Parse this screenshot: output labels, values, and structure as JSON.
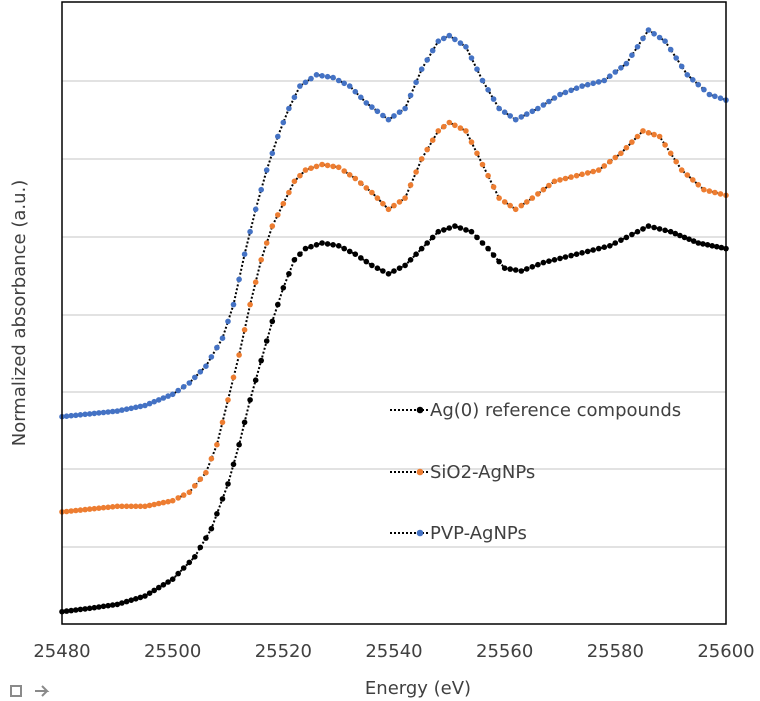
{
  "chart_data": {
    "type": "line",
    "title": "",
    "xlabel": "Energy (eV)",
    "ylabel": "Normalized absorbance (a.u.)",
    "xlim": [
      25480,
      25600
    ],
    "x_ticks": [
      25480,
      25500,
      25520,
      25540,
      25560,
      25580,
      25600
    ],
    "grid": "horizontal",
    "legend_placement": "lower-right",
    "series": [
      {
        "name": "Ag(0) reference compounds",
        "color": "#000000",
        "points": [
          [
            25480,
            0.012
          ],
          [
            25485,
            0.018
          ],
          [
            25490,
            0.025
          ],
          [
            25495,
            0.04
          ],
          [
            25500,
            0.07
          ],
          [
            25504,
            0.11
          ],
          [
            25507,
            0.16
          ],
          [
            25510,
            0.24
          ],
          [
            25512,
            0.31
          ],
          [
            25514,
            0.39
          ],
          [
            25516,
            0.46
          ],
          [
            25518,
            0.53
          ],
          [
            25520,
            0.59
          ],
          [
            25522,
            0.64
          ],
          [
            25524,
            0.66
          ],
          [
            25527,
            0.67
          ],
          [
            25530,
            0.665
          ],
          [
            25533,
            0.65
          ],
          [
            25536,
            0.63
          ],
          [
            25539,
            0.615
          ],
          [
            25542,
            0.63
          ],
          [
            25545,
            0.66
          ],
          [
            25548,
            0.69
          ],
          [
            25551,
            0.7
          ],
          [
            25554,
            0.69
          ],
          [
            25557,
            0.66
          ],
          [
            25560,
            0.625
          ],
          [
            25563,
            0.62
          ],
          [
            25567,
            0.635
          ],
          [
            25571,
            0.645
          ],
          [
            25575,
            0.655
          ],
          [
            25579,
            0.665
          ],
          [
            25582,
            0.68
          ],
          [
            25586,
            0.7
          ],
          [
            25590,
            0.69
          ],
          [
            25595,
            0.67
          ],
          [
            25600,
            0.66
          ]
        ]
      },
      {
        "name": "SiO2-AgNPs",
        "color": "#ED7D31",
        "points": [
          [
            25480,
            0.19
          ],
          [
            25485,
            0.195
          ],
          [
            25490,
            0.2
          ],
          [
            25495,
            0.2
          ],
          [
            25500,
            0.21
          ],
          [
            25503,
            0.225
          ],
          [
            25506,
            0.26
          ],
          [
            25508,
            0.31
          ],
          [
            25510,
            0.39
          ],
          [
            25512,
            0.47
          ],
          [
            25514,
            0.56
          ],
          [
            25516,
            0.64
          ],
          [
            25518,
            0.7
          ],
          [
            25520,
            0.74
          ],
          [
            25522,
            0.78
          ],
          [
            25524,
            0.8
          ],
          [
            25527,
            0.81
          ],
          [
            25530,
            0.805
          ],
          [
            25533,
            0.785
          ],
          [
            25536,
            0.76
          ],
          [
            25539,
            0.73
          ],
          [
            25542,
            0.75
          ],
          [
            25545,
            0.82
          ],
          [
            25548,
            0.87
          ],
          [
            25550,
            0.885
          ],
          [
            25553,
            0.87
          ],
          [
            25556,
            0.81
          ],
          [
            25559,
            0.75
          ],
          [
            25562,
            0.73
          ],
          [
            25565,
            0.75
          ],
          [
            25569,
            0.78
          ],
          [
            25573,
            0.79
          ],
          [
            25577,
            0.8
          ],
          [
            25581,
            0.83
          ],
          [
            25585,
            0.87
          ],
          [
            25588,
            0.86
          ],
          [
            25592,
            0.8
          ],
          [
            25596,
            0.765
          ],
          [
            25600,
            0.755
          ]
        ]
      },
      {
        "name": "PVP-AgNPs",
        "color": "#4472C4",
        "points": [
          [
            25480,
            0.36
          ],
          [
            25485,
            0.365
          ],
          [
            25490,
            0.37
          ],
          [
            25495,
            0.38
          ],
          [
            25500,
            0.4
          ],
          [
            25503,
            0.42
          ],
          [
            25506,
            0.45
          ],
          [
            25509,
            0.5
          ],
          [
            25511,
            0.56
          ],
          [
            25513,
            0.65
          ],
          [
            25515,
            0.73
          ],
          [
            25517,
            0.8
          ],
          [
            25519,
            0.86
          ],
          [
            25521,
            0.91
          ],
          [
            25523,
            0.95
          ],
          [
            25526,
            0.97
          ],
          [
            25529,
            0.965
          ],
          [
            25532,
            0.95
          ],
          [
            25535,
            0.92
          ],
          [
            25539,
            0.89
          ],
          [
            25542,
            0.91
          ],
          [
            25545,
            0.98
          ],
          [
            25548,
            1.03
          ],
          [
            25550,
            1.04
          ],
          [
            25553,
            1.02
          ],
          [
            25556,
            0.96
          ],
          [
            25559,
            0.91
          ],
          [
            25562,
            0.89
          ],
          [
            25566,
            0.91
          ],
          [
            25570,
            0.935
          ],
          [
            25574,
            0.95
          ],
          [
            25578,
            0.96
          ],
          [
            25582,
            0.99
          ],
          [
            25586,
            1.05
          ],
          [
            25589,
            1.03
          ],
          [
            25593,
            0.97
          ],
          [
            25597,
            0.935
          ],
          [
            25600,
            0.925
          ]
        ]
      }
    ]
  }
}
